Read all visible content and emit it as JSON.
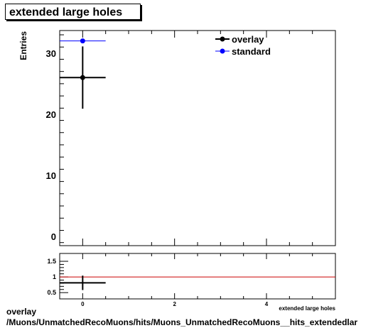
{
  "title": "extended large holes",
  "footer": {
    "line1": "overlay",
    "line2": "/Muons/UnmatchedRecoMuons/hits/Muons_UnmatchedRecoMuons__hits_extendedlar"
  },
  "chart_data": [
    {
      "type": "scatter",
      "panel": "main",
      "ylabel": "Entries",
      "xlim": [
        -0.5,
        5.5
      ],
      "ylim": [
        -1.5,
        33.7
      ],
      "yticks": [
        0,
        10,
        20,
        30
      ],
      "legend": {
        "placement": "top-right",
        "entries": [
          "overlay",
          "standard"
        ]
      },
      "series": [
        {
          "name": "overlay",
          "color": "#000000",
          "x": [
            0
          ],
          "y": [
            26
          ],
          "xerr": [
            0.5
          ],
          "yerr": [
            5.1
          ]
        },
        {
          "name": "standard",
          "color": "#0000ff",
          "x": [
            0
          ],
          "y": [
            32
          ],
          "xerr": [
            0.5
          ],
          "yerr": [
            0
          ]
        }
      ]
    },
    {
      "type": "scatter",
      "panel": "ratio",
      "xlabel": "extended large holes",
      "xlim": [
        -0.5,
        5.5
      ],
      "xticks": [
        0,
        2,
        4
      ],
      "ylim": [
        0.3,
        1.75
      ],
      "yticks": [
        0.5,
        1,
        1.5
      ],
      "reference_line": {
        "y": 1,
        "color": "#cc0000"
      },
      "series": [
        {
          "name": "ratio",
          "color": "#000000",
          "x": [
            0
          ],
          "y": [
            0.8125
          ],
          "xerr": [
            0.5
          ],
          "yerr": [
            0.23
          ]
        }
      ]
    }
  ]
}
